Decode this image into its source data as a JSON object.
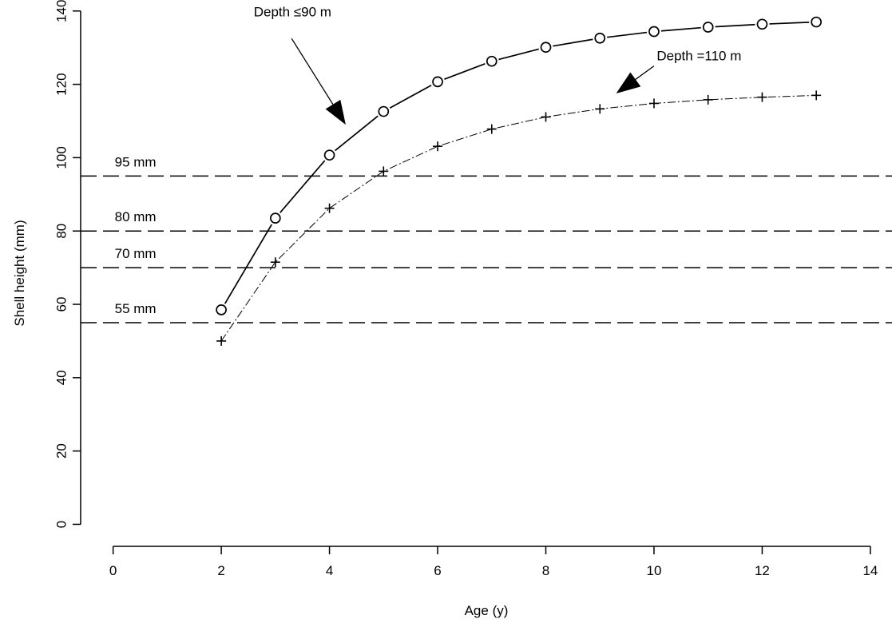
{
  "chart_data": {
    "type": "line",
    "title": "",
    "xlabel": "Age (y)",
    "ylabel": "Shell height (mm)",
    "xlim": [
      -0.6,
      14.4
    ],
    "ylim": [
      -6,
      143
    ],
    "x_ticks": [
      0,
      2,
      4,
      6,
      8,
      10,
      12,
      14
    ],
    "y_ticks": [
      0,
      20,
      40,
      60,
      80,
      100,
      120,
      140
    ],
    "grid": false,
    "legend": "none",
    "series": [
      {
        "style": "solid",
        "marker": "open-circle",
        "x": [
          2,
          3,
          4,
          5,
          6,
          7,
          8,
          9,
          10,
          11,
          12,
          13
        ],
        "y": [
          58.5,
          83.5,
          100.7,
          112.6,
          120.7,
          126.3,
          130.1,
          132.6,
          134.4,
          135.6,
          136.4,
          137.0
        ]
      },
      {
        "style": "dash-dot",
        "marker": "plus",
        "x": [
          2,
          3,
          4,
          5,
          6,
          7,
          8,
          9,
          10,
          11,
          12,
          13
        ],
        "y": [
          50.0,
          71.5,
          86.2,
          96.3,
          103.1,
          107.8,
          111.1,
          113.3,
          114.8,
          115.8,
          116.5,
          117.0
        ]
      }
    ],
    "reference_lines": [
      {
        "y": 95,
        "label": "95 mm"
      },
      {
        "y": 80,
        "label": "80 mm"
      },
      {
        "y": 70,
        "label": "70 mm"
      },
      {
        "y": 55,
        "label": "55 mm"
      }
    ],
    "annotations": [
      {
        "text": "Depth ≤90 m",
        "text_x": 2.6,
        "text_y": 138.5,
        "arrow_from": [
          3.3,
          132.5
        ],
        "arrow_to": [
          4.3,
          109
        ]
      },
      {
        "text": "Depth =110 m",
        "text_x": 10.05,
        "text_y": 126.5,
        "arrow_from": [
          10.0,
          125
        ],
        "arrow_to": [
          9.3,
          117.5
        ]
      }
    ]
  }
}
